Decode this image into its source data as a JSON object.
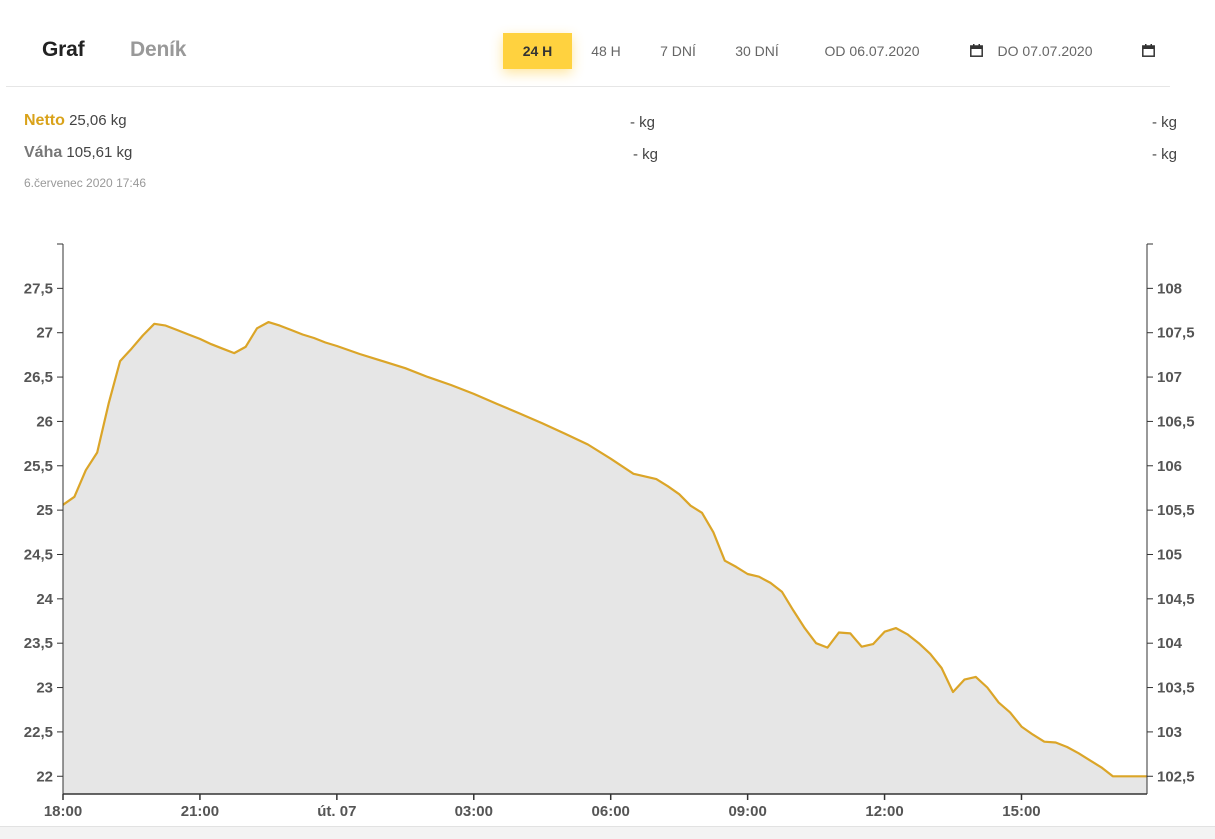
{
  "tabs": {
    "graph": "Graf",
    "diary": "Deník"
  },
  "ranges": [
    {
      "label": "24 H",
      "active": true
    },
    {
      "label": "48 H",
      "active": false
    },
    {
      "label": "7 DNÍ",
      "active": false
    },
    {
      "label": "30 DNÍ",
      "active": false
    }
  ],
  "date_from": "OD 06.07.2020",
  "date_to": "DO 07.07.2020",
  "netto": {
    "label": "Netto",
    "value": "25,06 kg",
    "mid": "- kg",
    "right": "- kg"
  },
  "vaha": {
    "label": "Váha",
    "value": "105,61 kg",
    "mid": "- kg",
    "right": "- kg"
  },
  "timestamp": "6.červenec 2020 17:46",
  "colors": {
    "accent": "#ffd23f",
    "line": "#dba528",
    "area": "#e6e6e6"
  },
  "chart_data": {
    "type": "area",
    "x_ticks": [
      "18:00",
      "21:00",
      "út. 07",
      "03:00",
      "06:00",
      "09:00",
      "12:00",
      "15:00"
    ],
    "y_left_ticks": [
      "22",
      "22,5",
      "23",
      "23,5",
      "24",
      "24,5",
      "25",
      "25,5",
      "26",
      "26,5",
      "27",
      "27,5"
    ],
    "y_right_ticks": [
      "102,5",
      "103",
      "103,5",
      "104",
      "104,5",
      "105",
      "105,5",
      "106",
      "106,5",
      "107",
      "107,5",
      "108"
    ],
    "ylim_left": [
      21.8,
      28.0
    ],
    "x_hours_range": [
      0,
      23.75
    ],
    "series": [
      {
        "x": [
          0,
          0.25,
          0.5,
          0.75,
          1.0,
          1.25,
          1.5,
          1.75,
          2.0,
          2.25,
          2.5,
          2.75,
          3.0,
          3.25,
          3.5,
          3.75,
          4.0,
          4.25,
          4.5,
          4.75,
          5.0,
          5.25,
          5.5,
          5.75,
          6.0,
          6.5,
          7.0,
          7.5,
          8.0,
          8.5,
          9.0,
          9.5,
          10.0,
          10.5,
          11.0,
          11.5,
          12.0,
          12.5,
          13.0,
          13.25,
          13.5,
          13.75,
          14.0,
          14.25,
          14.5,
          14.75,
          15.0,
          15.25,
          15.5,
          15.75,
          16.0,
          16.25,
          16.5,
          16.75,
          17.0,
          17.25,
          17.5,
          17.75,
          18.0,
          18.25,
          18.5,
          18.75,
          19.0,
          19.25,
          19.5,
          19.75,
          20.0,
          20.25,
          20.5,
          20.75,
          21.0,
          21.25,
          21.5,
          21.75,
          22.0,
          22.25,
          22.5,
          22.75,
          23.0,
          23.25,
          23.5,
          23.75
        ],
        "values": [
          25.06,
          25.15,
          25.45,
          25.65,
          26.2,
          26.68,
          26.82,
          26.97,
          27.1,
          27.08,
          27.03,
          26.98,
          26.93,
          26.87,
          26.82,
          26.77,
          26.84,
          27.05,
          27.12,
          27.08,
          27.03,
          26.98,
          26.94,
          26.89,
          26.85,
          26.76,
          26.68,
          26.6,
          26.5,
          26.41,
          26.31,
          26.2,
          26.09,
          25.98,
          25.86,
          25.74,
          25.58,
          25.41,
          25.35,
          25.27,
          25.18,
          25.05,
          24.97,
          24.75,
          24.43,
          24.36,
          24.28,
          24.25,
          24.18,
          24.08,
          23.87,
          23.67,
          23.5,
          23.45,
          23.62,
          23.61,
          23.46,
          23.49,
          23.63,
          23.67,
          23.6,
          23.5,
          23.38,
          23.22,
          22.95,
          23.09,
          23.12,
          23.0,
          22.83,
          22.72,
          22.56,
          22.47,
          22.39,
          22.38,
          22.33,
          22.26,
          22.18,
          22.1,
          22.0,
          22.0,
          22.0,
          22.0
        ]
      }
    ],
    "grid": false,
    "legend": "none"
  }
}
